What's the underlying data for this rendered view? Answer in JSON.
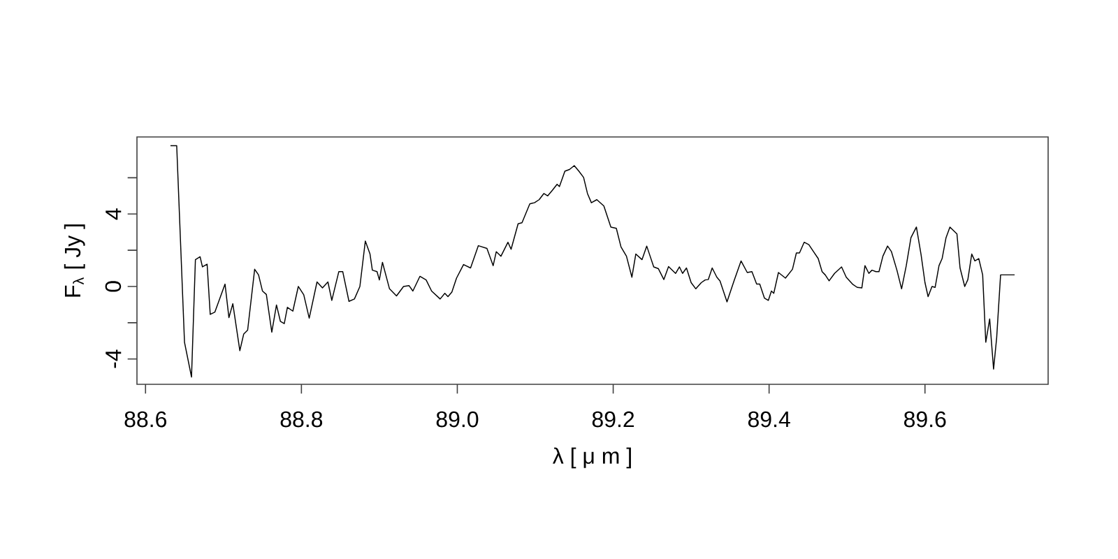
{
  "chart_data": {
    "type": "line",
    "xlabel": "λ [ μ m ]",
    "ylabel": "F$_{λ}$ [ Jy ]",
    "xlim": [
      88.589,
      89.758
    ],
    "ylim": [
      -5.4,
      8.25
    ],
    "xticks": [
      88.6,
      88.8,
      {
        "value": 89.0,
        "label": "89.0"
      },
      89.2,
      89.4,
      89.6
    ],
    "yticks": [
      {
        "value": -4,
        "label": "-4"
      },
      {
        "value": -2,
        "label": null
      },
      {
        "value": 0,
        "label": "0"
      },
      {
        "value": 2,
        "label": null
      },
      {
        "value": 4,
        "label": "4"
      },
      {
        "value": 6,
        "label": null
      }
    ],
    "series": [
      {
        "color": "#000000",
        "x": [
          88.632,
          88.64,
          88.65,
          88.659,
          88.664,
          88.67,
          88.673,
          88.679,
          88.683,
          88.689,
          88.702,
          88.707,
          88.712,
          88.721,
          88.726,
          88.731,
          88.74,
          88.745,
          88.75,
          88.755,
          88.762,
          88.768,
          88.773,
          88.778,
          88.782,
          88.789,
          88.796,
          88.803,
          88.81,
          88.82,
          88.827,
          88.834,
          88.839,
          88.848,
          88.853,
          88.861,
          88.868,
          88.875,
          88.882,
          88.888,
          88.891,
          88.897,
          88.9,
          88.904,
          88.913,
          88.922,
          88.931,
          88.938,
          88.943,
          88.952,
          88.96,
          88.967,
          88.978,
          88.984,
          88.988,
          88.993,
          88.999,
          89.008,
          89.017,
          89.027,
          89.038,
          89.046,
          89.05,
          89.056,
          89.065,
          89.069,
          89.078,
          89.083,
          89.093,
          89.099,
          89.105,
          89.111,
          89.116,
          89.122,
          89.128,
          89.131,
          89.138,
          89.144,
          89.15,
          89.156,
          89.162,
          89.167,
          89.172,
          89.179,
          89.188,
          89.197,
          89.204,
          89.21,
          89.217,
          89.224,
          89.229,
          89.237,
          89.243,
          89.252,
          89.258,
          89.265,
          89.271,
          89.28,
          89.285,
          89.289,
          89.294,
          89.3,
          89.306,
          89.313,
          89.318,
          89.322,
          89.327,
          89.333,
          89.337,
          89.346,
          89.355,
          89.364,
          89.372,
          89.378,
          89.384,
          89.388,
          89.394,
          89.399,
          89.403,
          89.406,
          89.412,
          89.421,
          89.43,
          89.435,
          89.439,
          89.445,
          89.451,
          89.457,
          89.463,
          89.468,
          89.472,
          89.477,
          89.484,
          89.493,
          89.499,
          89.507,
          89.513,
          89.519,
          89.523,
          89.528,
          89.532,
          89.537,
          89.541,
          89.546,
          89.552,
          89.557,
          89.564,
          89.57,
          89.576,
          89.582,
          89.589,
          89.595,
          89.6,
          89.604,
          89.609,
          89.613,
          89.618,
          89.622,
          89.627,
          89.632,
          89.641,
          89.645,
          89.651,
          89.655,
          89.66,
          89.664,
          89.669,
          89.674,
          89.678,
          89.683,
          89.688,
          89.692,
          89.697,
          89.715
        ],
        "values": [
          7.77,
          7.77,
          -3.08,
          -5.0,
          1.48,
          1.64,
          1.08,
          1.23,
          -1.54,
          -1.41,
          0.13,
          -1.72,
          -0.95,
          -3.54,
          -2.62,
          -2.41,
          0.95,
          0.64,
          -0.25,
          -0.44,
          -2.52,
          -1.02,
          -1.92,
          -2.05,
          -1.15,
          -1.36,
          0.0,
          -0.46,
          -1.75,
          0.25,
          -0.08,
          0.25,
          -0.77,
          0.82,
          0.82,
          -0.82,
          -0.69,
          0.0,
          2.51,
          1.79,
          0.9,
          0.82,
          0.36,
          1.33,
          -0.13,
          -0.52,
          0.0,
          0.05,
          -0.25,
          0.56,
          0.36,
          -0.25,
          -0.69,
          -0.38,
          -0.56,
          -0.31,
          0.46,
          1.21,
          1.02,
          2.25,
          2.1,
          1.15,
          1.92,
          1.67,
          2.44,
          2.05,
          3.46,
          3.52,
          4.56,
          4.62,
          4.79,
          5.13,
          5.0,
          5.31,
          5.64,
          5.51,
          6.36,
          6.46,
          6.67,
          6.36,
          6.02,
          5.13,
          4.62,
          4.79,
          4.44,
          3.28,
          3.21,
          2.18,
          1.67,
          0.51,
          1.79,
          1.48,
          2.23,
          1.08,
          0.98,
          0.38,
          1.1,
          0.72,
          1.08,
          0.72,
          1.02,
          0.21,
          -0.13,
          0.21,
          0.36,
          0.38,
          1.02,
          0.51,
          0.31,
          -0.85,
          0.31,
          1.41,
          0.77,
          0.82,
          0.13,
          0.13,
          -0.64,
          -0.77,
          -0.25,
          -0.38,
          0.77,
          0.46,
          0.95,
          1.85,
          1.85,
          2.44,
          2.31,
          1.92,
          1.54,
          0.82,
          0.64,
          0.31,
          0.72,
          1.08,
          0.51,
          0.13,
          -0.05,
          -0.08,
          1.15,
          0.72,
          0.9,
          0.82,
          0.82,
          1.67,
          2.23,
          1.92,
          0.9,
          -0.13,
          1.15,
          2.69,
          3.28,
          1.75,
          0.21,
          -0.56,
          0.0,
          -0.05,
          1.15,
          1.54,
          2.69,
          3.28,
          2.9,
          1.02,
          0.0,
          0.38,
          1.79,
          1.41,
          1.54,
          0.64,
          -3.08,
          -1.79,
          -4.56,
          -2.82,
          0.64,
          0.64
        ]
      }
    ]
  }
}
